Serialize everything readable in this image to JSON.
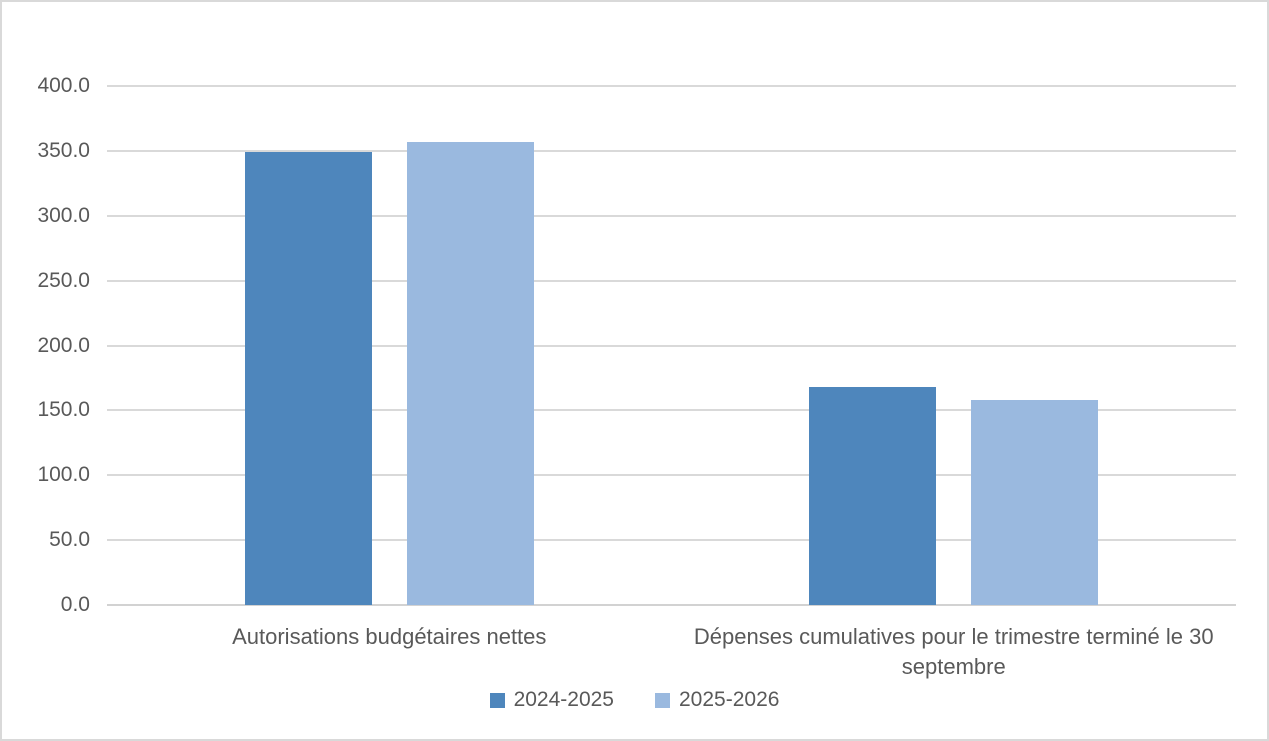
{
  "chart_data": {
    "type": "bar",
    "title": "",
    "xlabel": "",
    "ylabel": "",
    "categories": [
      "Autorisations budgétaires nettes",
      "Dépenses cumulatives pour le trimestre terminé le 30 septembre"
    ],
    "series": [
      {
        "name": "2024-2025",
        "color": "#4E86BC",
        "values": [
          349.0,
          168.0
        ]
      },
      {
        "name": "2025-2026",
        "color": "#9AB9DF",
        "values": [
          357.0,
          158.0
        ]
      }
    ],
    "ylim": [
      0,
      400
    ],
    "ytick_values": [
      0,
      50,
      100,
      150,
      200,
      250,
      300,
      350,
      400
    ],
    "ytick_labels": [
      "0.0",
      "50.0",
      "100.0",
      "150.0",
      "200.0",
      "250.0",
      "300.0",
      "350.0",
      "400.0"
    ],
    "grid": true,
    "legend_position": "bottom"
  },
  "colors": {
    "background": "#FFFFFF",
    "frame_border": "#D9D9D9",
    "gridline": "#D9D9D9",
    "axis_line": "#D2D2D2",
    "text": "#595959"
  }
}
